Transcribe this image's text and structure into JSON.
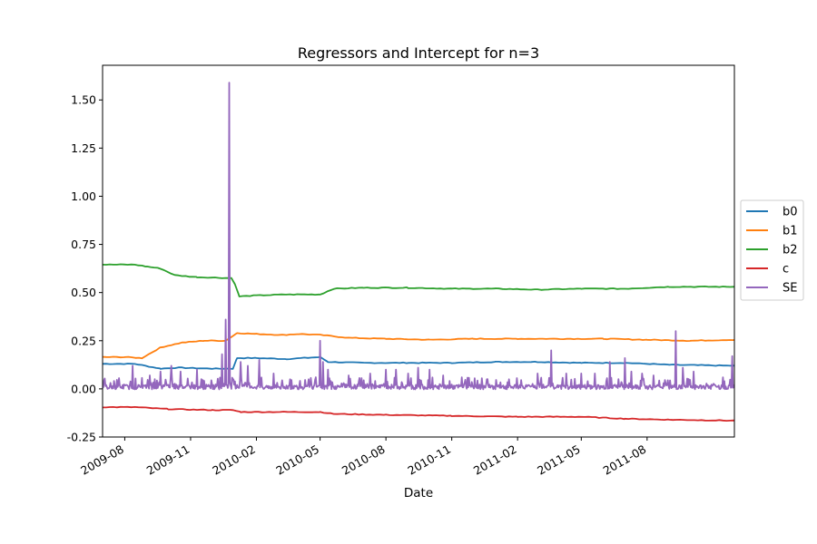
{
  "chart_data": {
    "type": "line",
    "title": "Regressors and Intercept for n=3",
    "xlabel": "Date",
    "ylabel": "",
    "xlim": [
      "2009-07-01",
      "2011-12-01"
    ],
    "ylim": [
      -0.25,
      1.68
    ],
    "yticks": [
      -0.25,
      0.0,
      0.25,
      0.5,
      0.75,
      1.0,
      1.25,
      1.5
    ],
    "xticks": [
      "2009-08",
      "2009-11",
      "2010-02",
      "2010-05",
      "2010-08",
      "2010-11",
      "2011-02",
      "2011-05",
      "2011-08"
    ],
    "legend": "center-right",
    "grid": false,
    "series": [
      {
        "name": "b0",
        "color": "#1f77b4",
        "points": [
          [
            "2009-07-01",
            0.13
          ],
          [
            "2009-08-15",
            0.13
          ],
          [
            "2009-09-20",
            0.105
          ],
          [
            "2009-10-15",
            0.11
          ],
          [
            "2009-12-01",
            0.105
          ],
          [
            "2009-12-30",
            0.105
          ],
          [
            "2010-01-05",
            0.16
          ],
          [
            "2010-02-01",
            0.16
          ],
          [
            "2010-03-15",
            0.155
          ],
          [
            "2010-05-01",
            0.165
          ],
          [
            "2010-05-12",
            0.14
          ],
          [
            "2010-07-01",
            0.135
          ],
          [
            "2010-09-01",
            0.135
          ],
          [
            "2010-11-01",
            0.135
          ],
          [
            "2011-01-01",
            0.14
          ],
          [
            "2011-03-01",
            0.14
          ],
          [
            "2011-05-01",
            0.135
          ],
          [
            "2011-07-01",
            0.135
          ],
          [
            "2011-09-01",
            0.125
          ],
          [
            "2011-12-01",
            0.12
          ]
        ]
      },
      {
        "name": "b1",
        "color": "#ff7f0e",
        "points": [
          [
            "2009-07-01",
            0.165
          ],
          [
            "2009-08-01",
            0.165
          ],
          [
            "2009-08-25",
            0.16
          ],
          [
            "2009-09-20",
            0.215
          ],
          [
            "2009-10-20",
            0.24
          ],
          [
            "2009-11-20",
            0.25
          ],
          [
            "2009-12-20",
            0.25
          ],
          [
            "2010-01-05",
            0.29
          ],
          [
            "2010-02-01",
            0.285
          ],
          [
            "2010-03-10",
            0.28
          ],
          [
            "2010-04-01",
            0.285
          ],
          [
            "2010-05-01",
            0.28
          ],
          [
            "2010-06-10",
            0.265
          ],
          [
            "2010-08-01",
            0.26
          ],
          [
            "2010-10-01",
            0.255
          ],
          [
            "2010-12-01",
            0.26
          ],
          [
            "2011-02-01",
            0.26
          ],
          [
            "2011-04-01",
            0.26
          ],
          [
            "2011-06-01",
            0.26
          ],
          [
            "2011-08-01",
            0.255
          ],
          [
            "2011-10-01",
            0.25
          ],
          [
            "2011-12-01",
            0.255
          ]
        ]
      },
      {
        "name": "b2",
        "color": "#2ca02c",
        "points": [
          [
            "2009-07-01",
            0.645
          ],
          [
            "2009-08-15",
            0.645
          ],
          [
            "2009-09-01",
            0.635
          ],
          [
            "2009-09-20",
            0.625
          ],
          [
            "2009-10-10",
            0.59
          ],
          [
            "2009-11-10",
            0.58
          ],
          [
            "2009-12-28",
            0.575
          ],
          [
            "2010-01-02",
            0.545
          ],
          [
            "2010-01-08",
            0.48
          ],
          [
            "2010-02-01",
            0.485
          ],
          [
            "2010-03-15",
            0.49
          ],
          [
            "2010-05-01",
            0.49
          ],
          [
            "2010-05-20",
            0.52
          ],
          [
            "2010-07-01",
            0.525
          ],
          [
            "2010-09-01",
            0.525
          ],
          [
            "2010-11-01",
            0.52
          ],
          [
            "2011-01-01",
            0.52
          ],
          [
            "2011-03-01",
            0.515
          ],
          [
            "2011-05-01",
            0.52
          ],
          [
            "2011-07-01",
            0.52
          ],
          [
            "2011-09-01",
            0.53
          ],
          [
            "2011-12-01",
            0.53
          ]
        ]
      },
      {
        "name": "c",
        "color": "#d62728",
        "points": [
          [
            "2009-07-01",
            -0.095
          ],
          [
            "2009-08-15",
            -0.095
          ],
          [
            "2009-10-01",
            -0.105
          ],
          [
            "2009-12-01",
            -0.11
          ],
          [
            "2009-12-30",
            -0.11
          ],
          [
            "2010-01-10",
            -0.12
          ],
          [
            "2010-03-01",
            -0.12
          ],
          [
            "2010-05-01",
            -0.12
          ],
          [
            "2010-05-20",
            -0.13
          ],
          [
            "2010-08-01",
            -0.135
          ],
          [
            "2010-11-01",
            -0.14
          ],
          [
            "2011-02-01",
            -0.145
          ],
          [
            "2011-05-01",
            -0.145
          ],
          [
            "2011-07-01",
            -0.155
          ],
          [
            "2011-09-01",
            -0.16
          ],
          [
            "2011-12-01",
            -0.165
          ]
        ]
      },
      {
        "name": "SE",
        "color": "#9467bd",
        "baseline": 0.01,
        "spikes": [
          [
            "2009-08-12",
            0.12
          ],
          [
            "2009-09-05",
            0.07
          ],
          [
            "2009-09-20",
            0.09
          ],
          [
            "2009-10-05",
            0.12
          ],
          [
            "2009-10-18",
            0.09
          ],
          [
            "2009-11-10",
            0.1
          ],
          [
            "2009-12-15",
            0.18
          ],
          [
            "2009-12-20",
            0.36
          ],
          [
            "2009-12-25",
            1.59
          ],
          [
            "2010-01-10",
            0.14
          ],
          [
            "2010-01-20",
            0.12
          ],
          [
            "2010-02-05",
            0.15
          ],
          [
            "2010-02-25",
            0.08
          ],
          [
            "2010-03-20",
            0.05
          ],
          [
            "2010-04-15",
            0.05
          ],
          [
            "2010-04-25",
            0.06
          ],
          [
            "2010-05-01",
            0.25
          ],
          [
            "2010-05-05",
            0.14
          ],
          [
            "2010-05-12",
            0.1
          ],
          [
            "2010-06-10",
            0.07
          ],
          [
            "2010-07-10",
            0.08
          ],
          [
            "2010-08-01",
            0.1
          ],
          [
            "2010-08-15",
            0.1
          ],
          [
            "2010-09-01",
            0.08
          ],
          [
            "2010-09-15",
            0.11
          ],
          [
            "2010-10-01",
            0.1
          ],
          [
            "2010-10-20",
            0.07
          ],
          [
            "2010-11-15",
            0.06
          ],
          [
            "2010-12-20",
            0.05
          ],
          [
            "2011-01-20",
            0.05
          ],
          [
            "2011-03-01",
            0.08
          ],
          [
            "2011-03-20",
            0.2
          ],
          [
            "2011-04-10",
            0.08
          ],
          [
            "2011-05-01",
            0.08
          ],
          [
            "2011-05-20",
            0.08
          ],
          [
            "2011-06-10",
            0.14
          ],
          [
            "2011-07-01",
            0.16
          ],
          [
            "2011-07-10",
            0.09
          ],
          [
            "2011-07-25",
            0.08
          ],
          [
            "2011-08-10",
            0.07
          ],
          [
            "2011-09-10",
            0.3
          ],
          [
            "2011-09-20",
            0.11
          ],
          [
            "2011-10-05",
            0.09
          ],
          [
            "2011-11-15",
            0.06
          ],
          [
            "2011-11-28",
            0.17
          ]
        ]
      }
    ]
  }
}
